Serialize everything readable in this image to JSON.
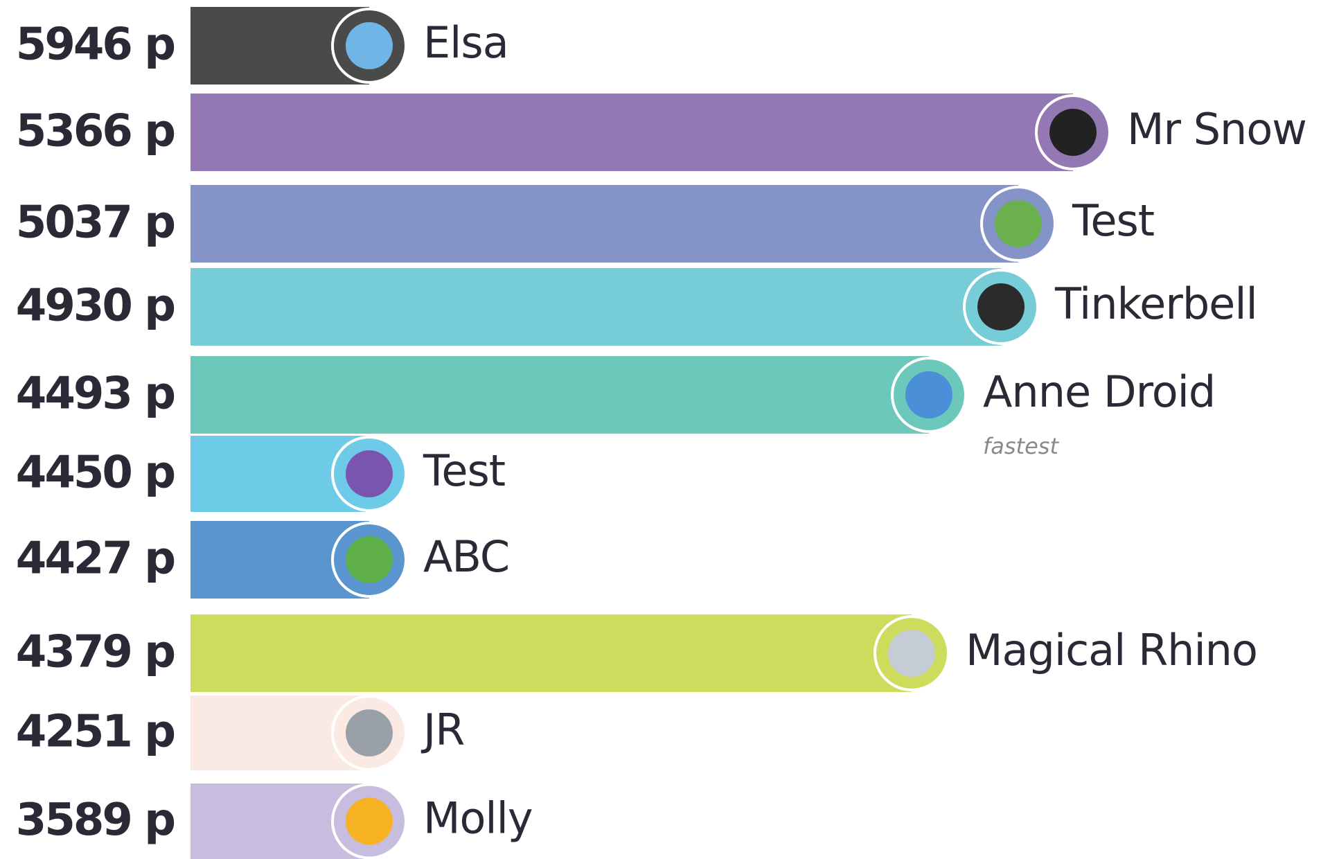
{
  "leaderboard": {
    "rows": [
      {
        "points": "5946 p",
        "name": "Elsa"
      },
      {
        "points": "5366 p",
        "name": "Mr Snow"
      },
      {
        "points": "5037 p",
        "name": "Test"
      },
      {
        "points": "4930 p",
        "name": "Tinkerbell"
      },
      {
        "points": "4493 p",
        "name": "Anne Droid",
        "badge": "fastest"
      },
      {
        "points": "4450 p",
        "name": "Test"
      },
      {
        "points": "4427 p",
        "name": "ABC"
      },
      {
        "points": "4379 p",
        "name": "Magical Rhino"
      },
      {
        "points": "4251 p",
        "name": "JR"
      },
      {
        "points": "3589 p",
        "name": "Molly"
      }
    ]
  }
}
